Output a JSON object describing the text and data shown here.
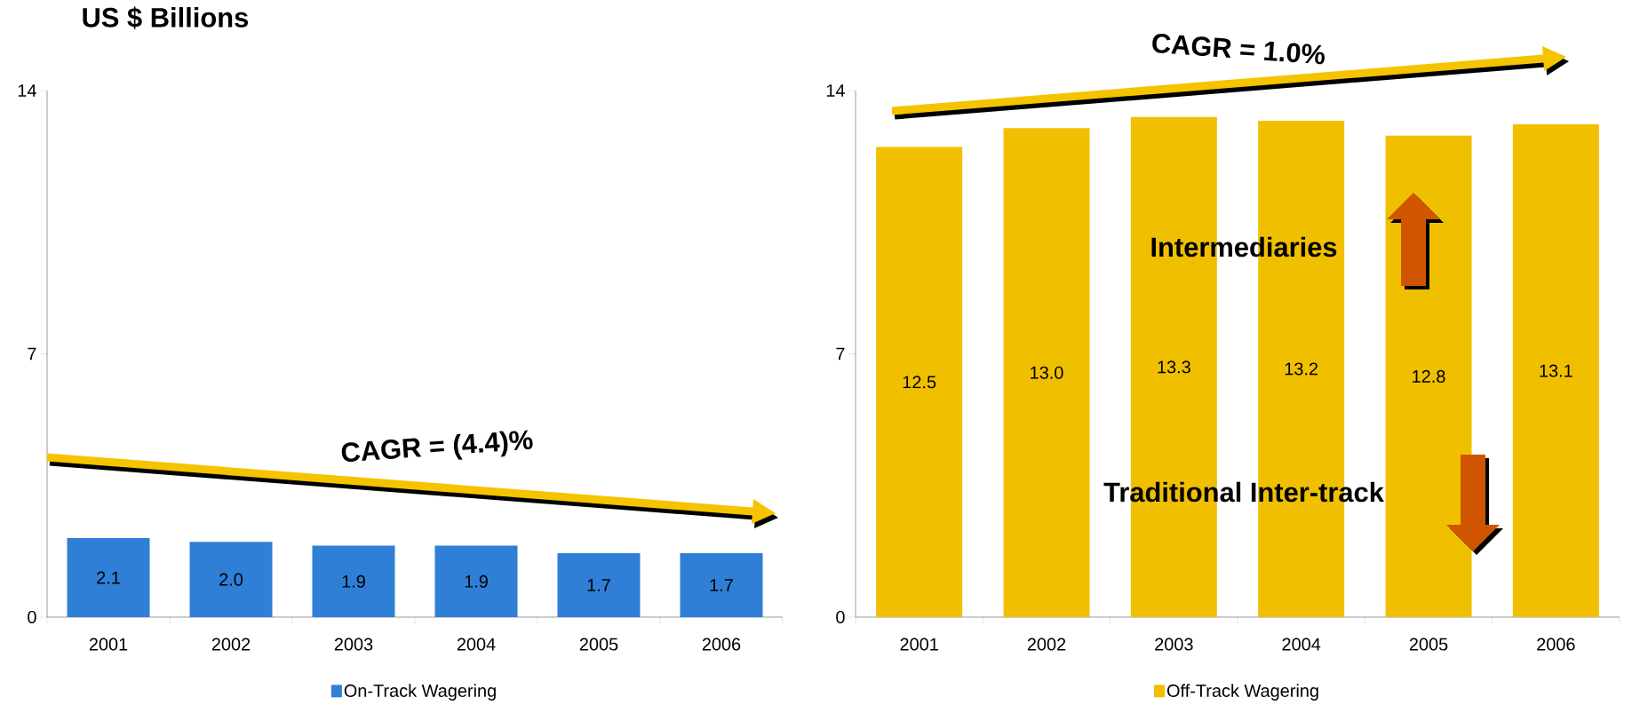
{
  "chart_data": [
    {
      "type": "bar",
      "title": "US $ Billions",
      "categories": [
        "2001",
        "2002",
        "2003",
        "2004",
        "2005",
        "2006"
      ],
      "series": [
        {
          "name": "On-Track Wagering",
          "color": "#2f7fd6",
          "values": [
            2.1,
            2.0,
            1.9,
            1.9,
            1.7,
            1.7
          ],
          "value_labels": [
            "2.1",
            "2.0",
            "1.9",
            "1.9",
            "1.7",
            "1.7"
          ]
        }
      ],
      "ylim": [
        0,
        14
      ],
      "yticks": [
        0,
        7,
        14
      ],
      "legend": "bottom",
      "annotations": [
        "CAGR = (4.4)%"
      ]
    },
    {
      "type": "bar",
      "categories": [
        "2001",
        "2002",
        "2003",
        "2004",
        "2005",
        "2006"
      ],
      "series": [
        {
          "name": "Off-Track Wagering",
          "color": "#f0c000",
          "values": [
            12.5,
            13.0,
            13.3,
            13.2,
            12.8,
            13.1
          ],
          "value_labels": [
            "12.5",
            "13.0",
            "13.3",
            "13.2",
            "12.8",
            "13.1"
          ]
        }
      ],
      "ylim": [
        0,
        14
      ],
      "yticks": [
        0,
        7,
        14
      ],
      "legend": "bottom",
      "annotations": [
        "CAGR = 1.0%",
        "Intermediaries",
        "Traditional Inter-track"
      ]
    }
  ]
}
